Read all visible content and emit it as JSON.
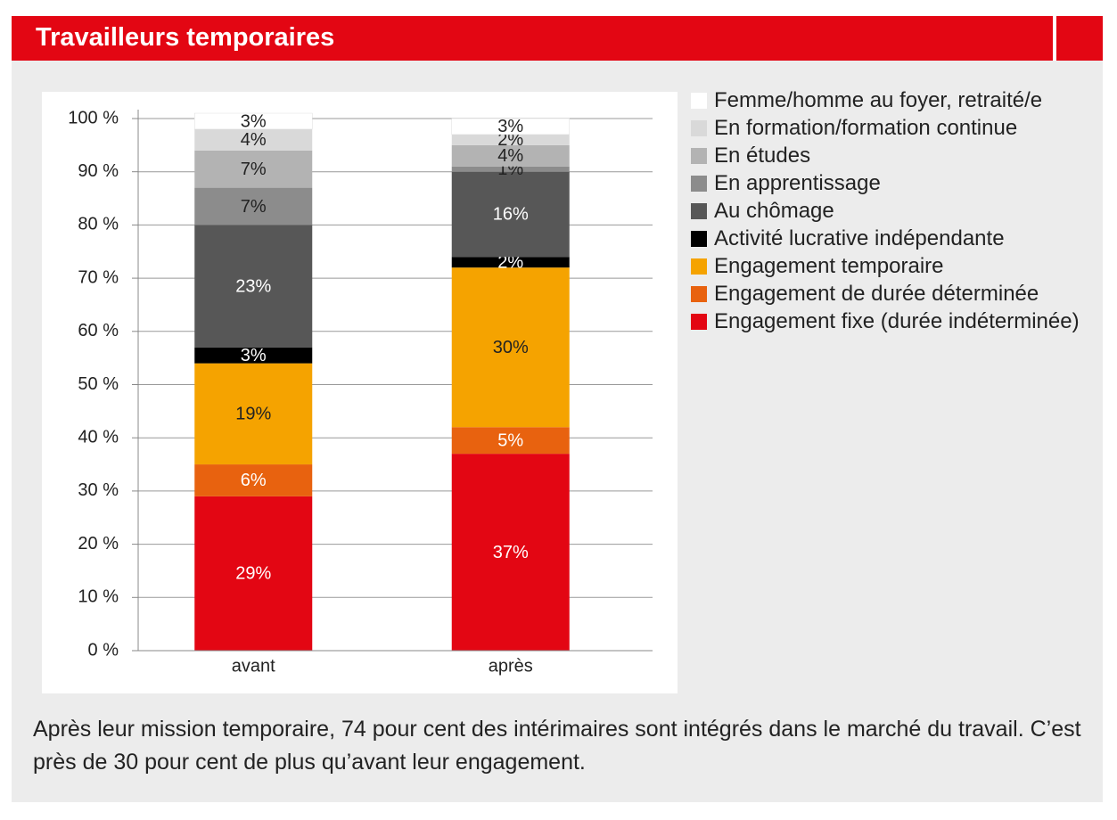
{
  "chart_data": {
    "type": "stacked-bar",
    "title": "Travailleurs temporaires",
    "caption": "Après leur mission temporaire, 74 pour cent des intérimaires sont intégrés dans le marché du travail. C’est près de 30 pour cent de plus qu’avant leur engagement.",
    "categories": [
      "avant",
      "après"
    ],
    "series": [
      {
        "name": "Engagement fixe (durée indéterminée)",
        "color": "#e30613",
        "values": [
          29,
          37
        ],
        "value_labels": [
          "29%",
          "37%"
        ]
      },
      {
        "name": "Engagement de durée déterminée",
        "color": "#e8620f",
        "values": [
          6,
          5
        ],
        "value_labels": [
          "6%",
          "5%"
        ]
      },
      {
        "name": "Engagement temporaire",
        "color": "#f5a300",
        "values": [
          19,
          30
        ],
        "value_labels": [
          "19%",
          "30%"
        ]
      },
      {
        "name": "Activité lucrative indépendante",
        "color": "#000000",
        "values": [
          3,
          2
        ],
        "value_labels": [
          "3%",
          "2%"
        ]
      },
      {
        "name": "Au chômage",
        "color": "#575757",
        "values": [
          23,
          16
        ],
        "value_labels": [
          "23%",
          "16%"
        ]
      },
      {
        "name": "En apprentissage",
        "color": "#8c8c8c",
        "values": [
          7,
          1
        ],
        "value_labels": [
          "7%",
          "1%"
        ]
      },
      {
        "name": "En études",
        "color": "#b3b3b3",
        "values": [
          7,
          4
        ],
        "value_labels": [
          "7%",
          "4%"
        ]
      },
      {
        "name": "En formation/formation continue",
        "color": "#d9d9d9",
        "values": [
          4,
          2
        ],
        "value_labels": [
          "4%",
          "2%"
        ]
      },
      {
        "name": "Femme/homme au foyer, retraité/e",
        "color": "#ffffff",
        "values": [
          3,
          3
        ],
        "value_labels": [
          "3%",
          "3%"
        ]
      }
    ],
    "ylim": [
      0,
      100
    ],
    "yticks": [
      {
        "value": 0,
        "label": "0 %"
      },
      {
        "value": 10,
        "label": "10 %"
      },
      {
        "value": 20,
        "label": "20 %"
      },
      {
        "value": 30,
        "label": "30 %"
      },
      {
        "value": 40,
        "label": "40 %"
      },
      {
        "value": 50,
        "label": "50 %"
      },
      {
        "value": 60,
        "label": "60 %"
      },
      {
        "value": 70,
        "label": "70 %"
      },
      {
        "value": 80,
        "label": "80 %"
      },
      {
        "value": 90,
        "label": "90 %"
      },
      {
        "value": 100,
        "label": "100 %"
      }
    ],
    "grid": true
  }
}
